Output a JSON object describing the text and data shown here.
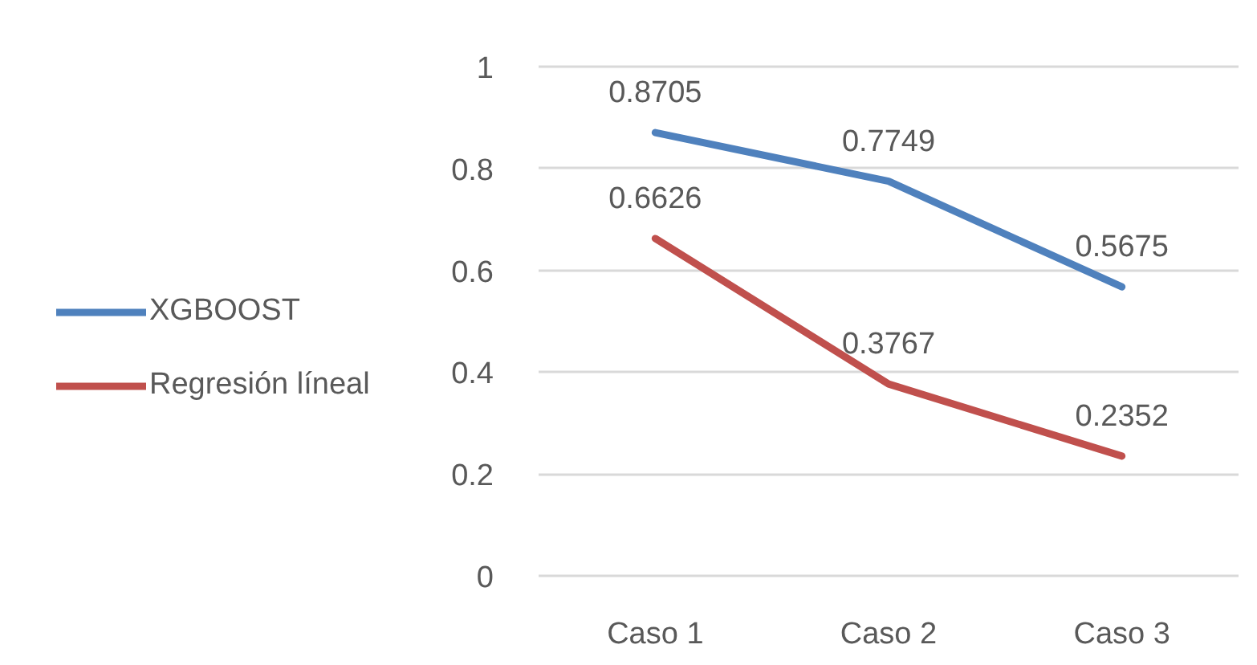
{
  "chart_data": {
    "type": "line",
    "categories": [
      "Caso 1",
      "Caso 2",
      "Caso 3"
    ],
    "series": [
      {
        "name": "XGBOOST",
        "color": "#4f81bd",
        "values": [
          0.8705,
          0.7749,
          0.5675
        ]
      },
      {
        "name": "Regresión líneal",
        "color": "#c0504d",
        "values": [
          0.6626,
          0.3767,
          0.2352
        ]
      }
    ],
    "ylim": [
      0,
      1
    ],
    "yticks": [
      0,
      0.2,
      0.4,
      0.6,
      0.8,
      1
    ],
    "grid": "y",
    "legend": "left",
    "data_labels": true,
    "line_style": "solid"
  }
}
